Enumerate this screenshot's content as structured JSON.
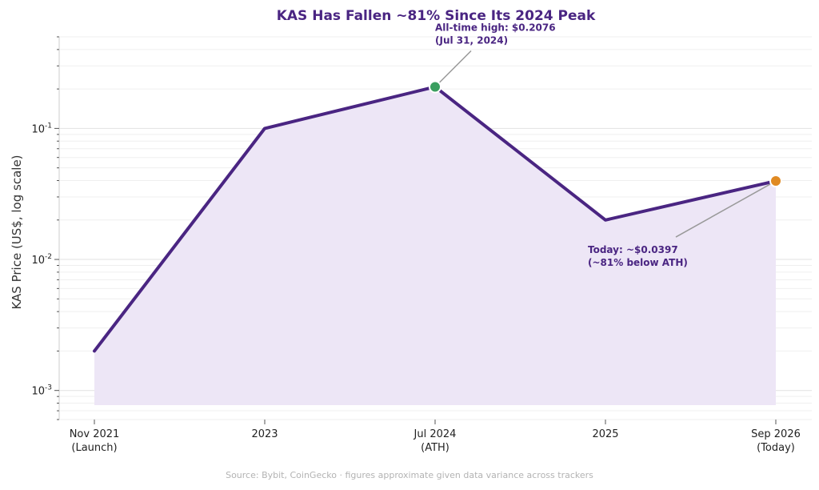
{
  "chart_data": {
    "type": "line",
    "title": "KAS Has Fallen ~81% Since Its 2024 Peak",
    "xlabel": "",
    "ylabel": "KAS Price (US$, log scale)",
    "y_scale": "log",
    "ylim": [
      0.0006,
      0.5
    ],
    "y_ticks": [
      {
        "base": "10",
        "exp": "-3"
      },
      {
        "base": "10",
        "exp": "-2"
      },
      {
        "base": "10",
        "exp": "-1"
      }
    ],
    "categories": [
      [
        "Nov 2021",
        "(Launch)"
      ],
      [
        "2023"
      ],
      [
        "Jul 2024",
        "(ATH)"
      ],
      [
        "2025"
      ],
      [
        "Sep 2026",
        "(Today)"
      ]
    ],
    "series": [
      {
        "values": [
          0.002,
          0.1,
          0.2076,
          0.02,
          0.0397
        ]
      }
    ],
    "annotations": [
      {
        "index": 2,
        "lines": [
          "All-time high: $0.2076",
          "(Jul 31, 2024)"
        ],
        "marker_color": "#3a9e5f"
      },
      {
        "index": 4,
        "lines": [
          "Today: ~$0.0397",
          "(~81% below ATH)"
        ],
        "marker_color": "#e08a23"
      }
    ],
    "grid": true,
    "line_color": "#4a2582",
    "fill_color": "#ede6f6",
    "source": "Source: Bybit, CoinGecko · figures approximate given data variance across trackers"
  }
}
